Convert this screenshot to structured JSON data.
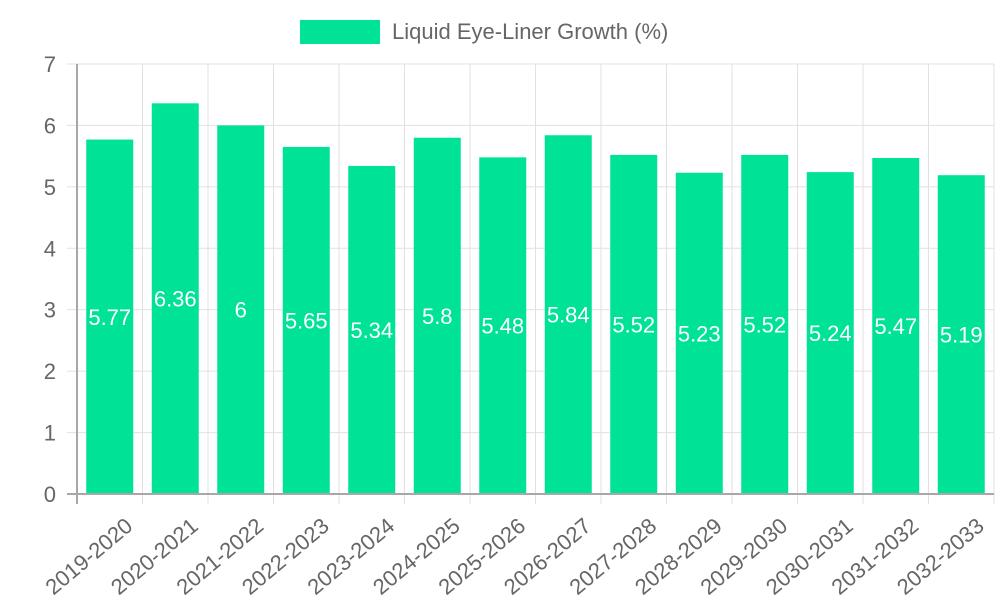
{
  "legend": {
    "label": "Liquid Eye-Liner Growth (%)",
    "color": "#00e396"
  },
  "chart_data": {
    "type": "bar",
    "title": "",
    "xlabel": "",
    "ylabel": "",
    "legend_position": "top",
    "grid": true,
    "ylim": [
      0,
      7
    ],
    "yticks": [
      0,
      1,
      2,
      3,
      4,
      5,
      6,
      7
    ],
    "categories": [
      "2019-2020",
      "2020-2021",
      "2021-2022",
      "2022-2023",
      "2023-2024",
      "2024-2025",
      "2025-2026",
      "2026-2027",
      "2027-2028",
      "2028-2029",
      "2029-2030",
      "2030-2031",
      "2031-2032",
      "2032-2033"
    ],
    "series": [
      {
        "name": "Liquid Eye-Liner Growth (%)",
        "color": "#00e396",
        "values": [
          5.77,
          6.36,
          6,
          5.65,
          5.34,
          5.8,
          5.48,
          5.84,
          5.52,
          5.23,
          5.52,
          5.24,
          5.47,
          5.19
        ]
      }
    ]
  }
}
